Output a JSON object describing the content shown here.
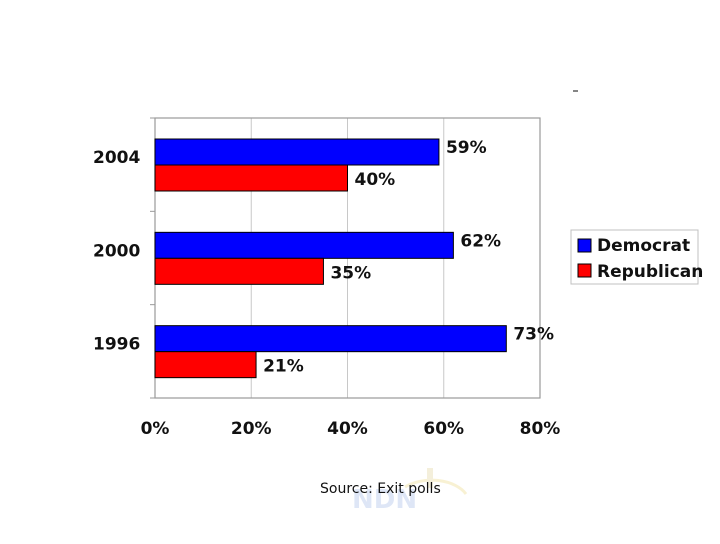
{
  "chart_data": {
    "type": "bar",
    "orientation": "horizontal",
    "categories": [
      "2004",
      "2000",
      "1996"
    ],
    "series": [
      {
        "name": "Democrat",
        "values": [
          59,
          62,
          73
        ]
      },
      {
        "name": "Republican",
        "values": [
          40,
          35,
          21
        ]
      }
    ],
    "data_labels": {
      "Democrat": [
        "59%",
        "62%",
        "73%"
      ],
      "Republican": [
        "40%",
        "35%",
        "21%"
      ]
    },
    "x_ticks": [
      "0%",
      "20%",
      "40%",
      "60%",
      "80%"
    ],
    "xlim": [
      0,
      80
    ],
    "grid": true,
    "legend_position": "right",
    "colors": {
      "Democrat": "#0000ff",
      "Republican": "#ff0000",
      "grid": "#c8c8c8",
      "frame": "#9a9a9a"
    },
    "title": "",
    "xlabel": "",
    "ylabel": ""
  },
  "source_note": "Source: Exit polls",
  "watermark": "NDN"
}
